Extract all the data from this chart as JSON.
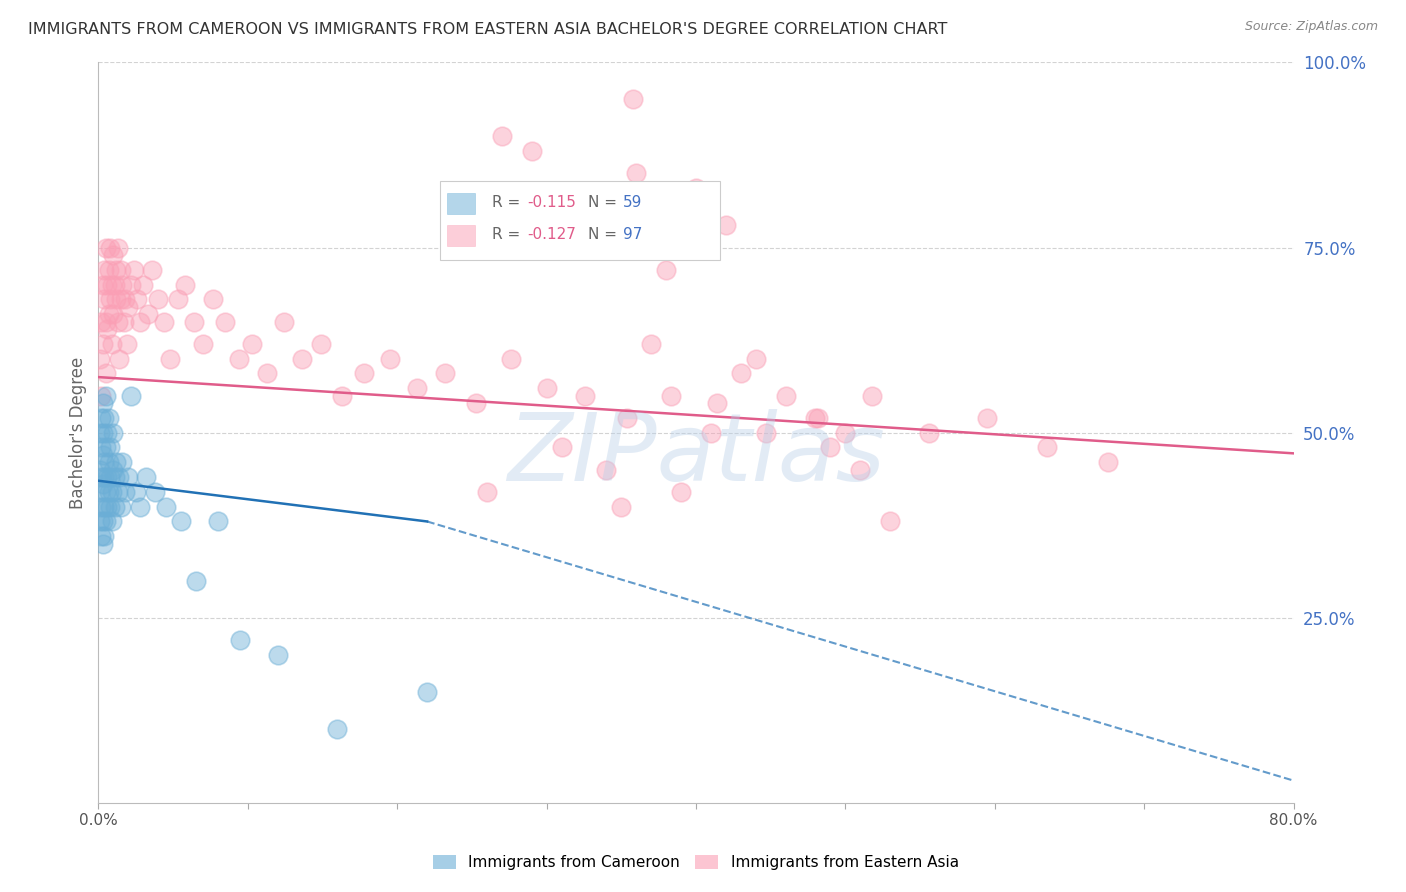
{
  "title": "IMMIGRANTS FROM CAMEROON VS IMMIGRANTS FROM EASTERN ASIA BACHELOR'S DEGREE CORRELATION CHART",
  "source": "Source: ZipAtlas.com",
  "ylabel": "Bachelor's Degree",
  "xlim": [
    0.0,
    0.8
  ],
  "ylim": [
    0.0,
    1.0
  ],
  "color_cameroon": "#6baed6",
  "color_eastern_asia": "#fa9fb5",
  "color_trend_cameroon": "#2171b5",
  "color_trend_eastern_asia": "#e05c8a",
  "color_axis_right": "#4472c4",
  "watermark": "ZIPatlas",
  "background_color": "#ffffff",
  "grid_color": "#c8c8c8",
  "cameroon_x": [
    0.001,
    0.001,
    0.001,
    0.001,
    0.002,
    0.002,
    0.002,
    0.002,
    0.002,
    0.003,
    0.003,
    0.003,
    0.003,
    0.003,
    0.003,
    0.004,
    0.004,
    0.004,
    0.004,
    0.004,
    0.005,
    0.005,
    0.005,
    0.005,
    0.006,
    0.006,
    0.006,
    0.007,
    0.007,
    0.007,
    0.008,
    0.008,
    0.008,
    0.009,
    0.009,
    0.01,
    0.01,
    0.011,
    0.011,
    0.012,
    0.013,
    0.014,
    0.015,
    0.016,
    0.018,
    0.02,
    0.022,
    0.025,
    0.028,
    0.032,
    0.038,
    0.045,
    0.055,
    0.065,
    0.08,
    0.095,
    0.12,
    0.16,
    0.22
  ],
  "cameroon_y": [
    0.45,
    0.42,
    0.5,
    0.38,
    0.48,
    0.44,
    0.52,
    0.4,
    0.36,
    0.47,
    0.5,
    0.43,
    0.38,
    0.54,
    0.35,
    0.46,
    0.52,
    0.4,
    0.44,
    0.36,
    0.48,
    0.42,
    0.55,
    0.38,
    0.5,
    0.44,
    0.4,
    0.46,
    0.52,
    0.42,
    0.48,
    0.44,
    0.4,
    0.42,
    0.38,
    0.45,
    0.5,
    0.44,
    0.4,
    0.46,
    0.42,
    0.44,
    0.4,
    0.46,
    0.42,
    0.44,
    0.55,
    0.42,
    0.4,
    0.44,
    0.42,
    0.4,
    0.38,
    0.3,
    0.38,
    0.22,
    0.2,
    0.1,
    0.15
  ],
  "eastern_asia_x": [
    0.001,
    0.002,
    0.002,
    0.003,
    0.003,
    0.004,
    0.004,
    0.005,
    0.005,
    0.005,
    0.006,
    0.006,
    0.007,
    0.007,
    0.008,
    0.008,
    0.009,
    0.009,
    0.01,
    0.01,
    0.011,
    0.012,
    0.012,
    0.013,
    0.013,
    0.014,
    0.015,
    0.015,
    0.016,
    0.017,
    0.018,
    0.019,
    0.02,
    0.022,
    0.024,
    0.026,
    0.028,
    0.03,
    0.033,
    0.036,
    0.04,
    0.044,
    0.048,
    0.053,
    0.058,
    0.064,
    0.07,
    0.077,
    0.085,
    0.094,
    0.103,
    0.113,
    0.124,
    0.136,
    0.149,
    0.163,
    0.178,
    0.195,
    0.213,
    0.232,
    0.253,
    0.276,
    0.3,
    0.326,
    0.354,
    0.383,
    0.414,
    0.447,
    0.482,
    0.518,
    0.556,
    0.595,
    0.635,
    0.676,
    0.358,
    0.29,
    0.4,
    0.42,
    0.32,
    0.27,
    0.38,
    0.36,
    0.41,
    0.48,
    0.34,
    0.26,
    0.44,
    0.46,
    0.5,
    0.31,
    0.43,
    0.49,
    0.35,
    0.37,
    0.39,
    0.51,
    0.53
  ],
  "eastern_asia_y": [
    0.6,
    0.65,
    0.55,
    0.7,
    0.62,
    0.68,
    0.72,
    0.65,
    0.75,
    0.58,
    0.7,
    0.64,
    0.72,
    0.66,
    0.75,
    0.68,
    0.7,
    0.62,
    0.74,
    0.66,
    0.7,
    0.68,
    0.72,
    0.65,
    0.75,
    0.6,
    0.72,
    0.68,
    0.7,
    0.65,
    0.68,
    0.62,
    0.67,
    0.7,
    0.72,
    0.68,
    0.65,
    0.7,
    0.66,
    0.72,
    0.68,
    0.65,
    0.6,
    0.68,
    0.7,
    0.65,
    0.62,
    0.68,
    0.65,
    0.6,
    0.62,
    0.58,
    0.65,
    0.6,
    0.62,
    0.55,
    0.58,
    0.6,
    0.56,
    0.58,
    0.54,
    0.6,
    0.56,
    0.55,
    0.52,
    0.55,
    0.54,
    0.5,
    0.52,
    0.55,
    0.5,
    0.52,
    0.48,
    0.46,
    0.95,
    0.88,
    0.83,
    0.78,
    0.82,
    0.9,
    0.72,
    0.85,
    0.5,
    0.52,
    0.45,
    0.42,
    0.6,
    0.55,
    0.5,
    0.48,
    0.58,
    0.48,
    0.4,
    0.62,
    0.42,
    0.45,
    0.38
  ],
  "cam_trend_x_start": 0.0,
  "cam_trend_x_solid_end": 0.22,
  "cam_trend_x_dash_end": 0.8,
  "cam_trend_y_start": 0.435,
  "cam_trend_y_solid_end": 0.38,
  "cam_trend_y_dash_end": 0.03,
  "ea_trend_x_start": 0.0,
  "ea_trend_x_end": 0.8,
  "ea_trend_y_start": 0.575,
  "ea_trend_y_end": 0.472
}
